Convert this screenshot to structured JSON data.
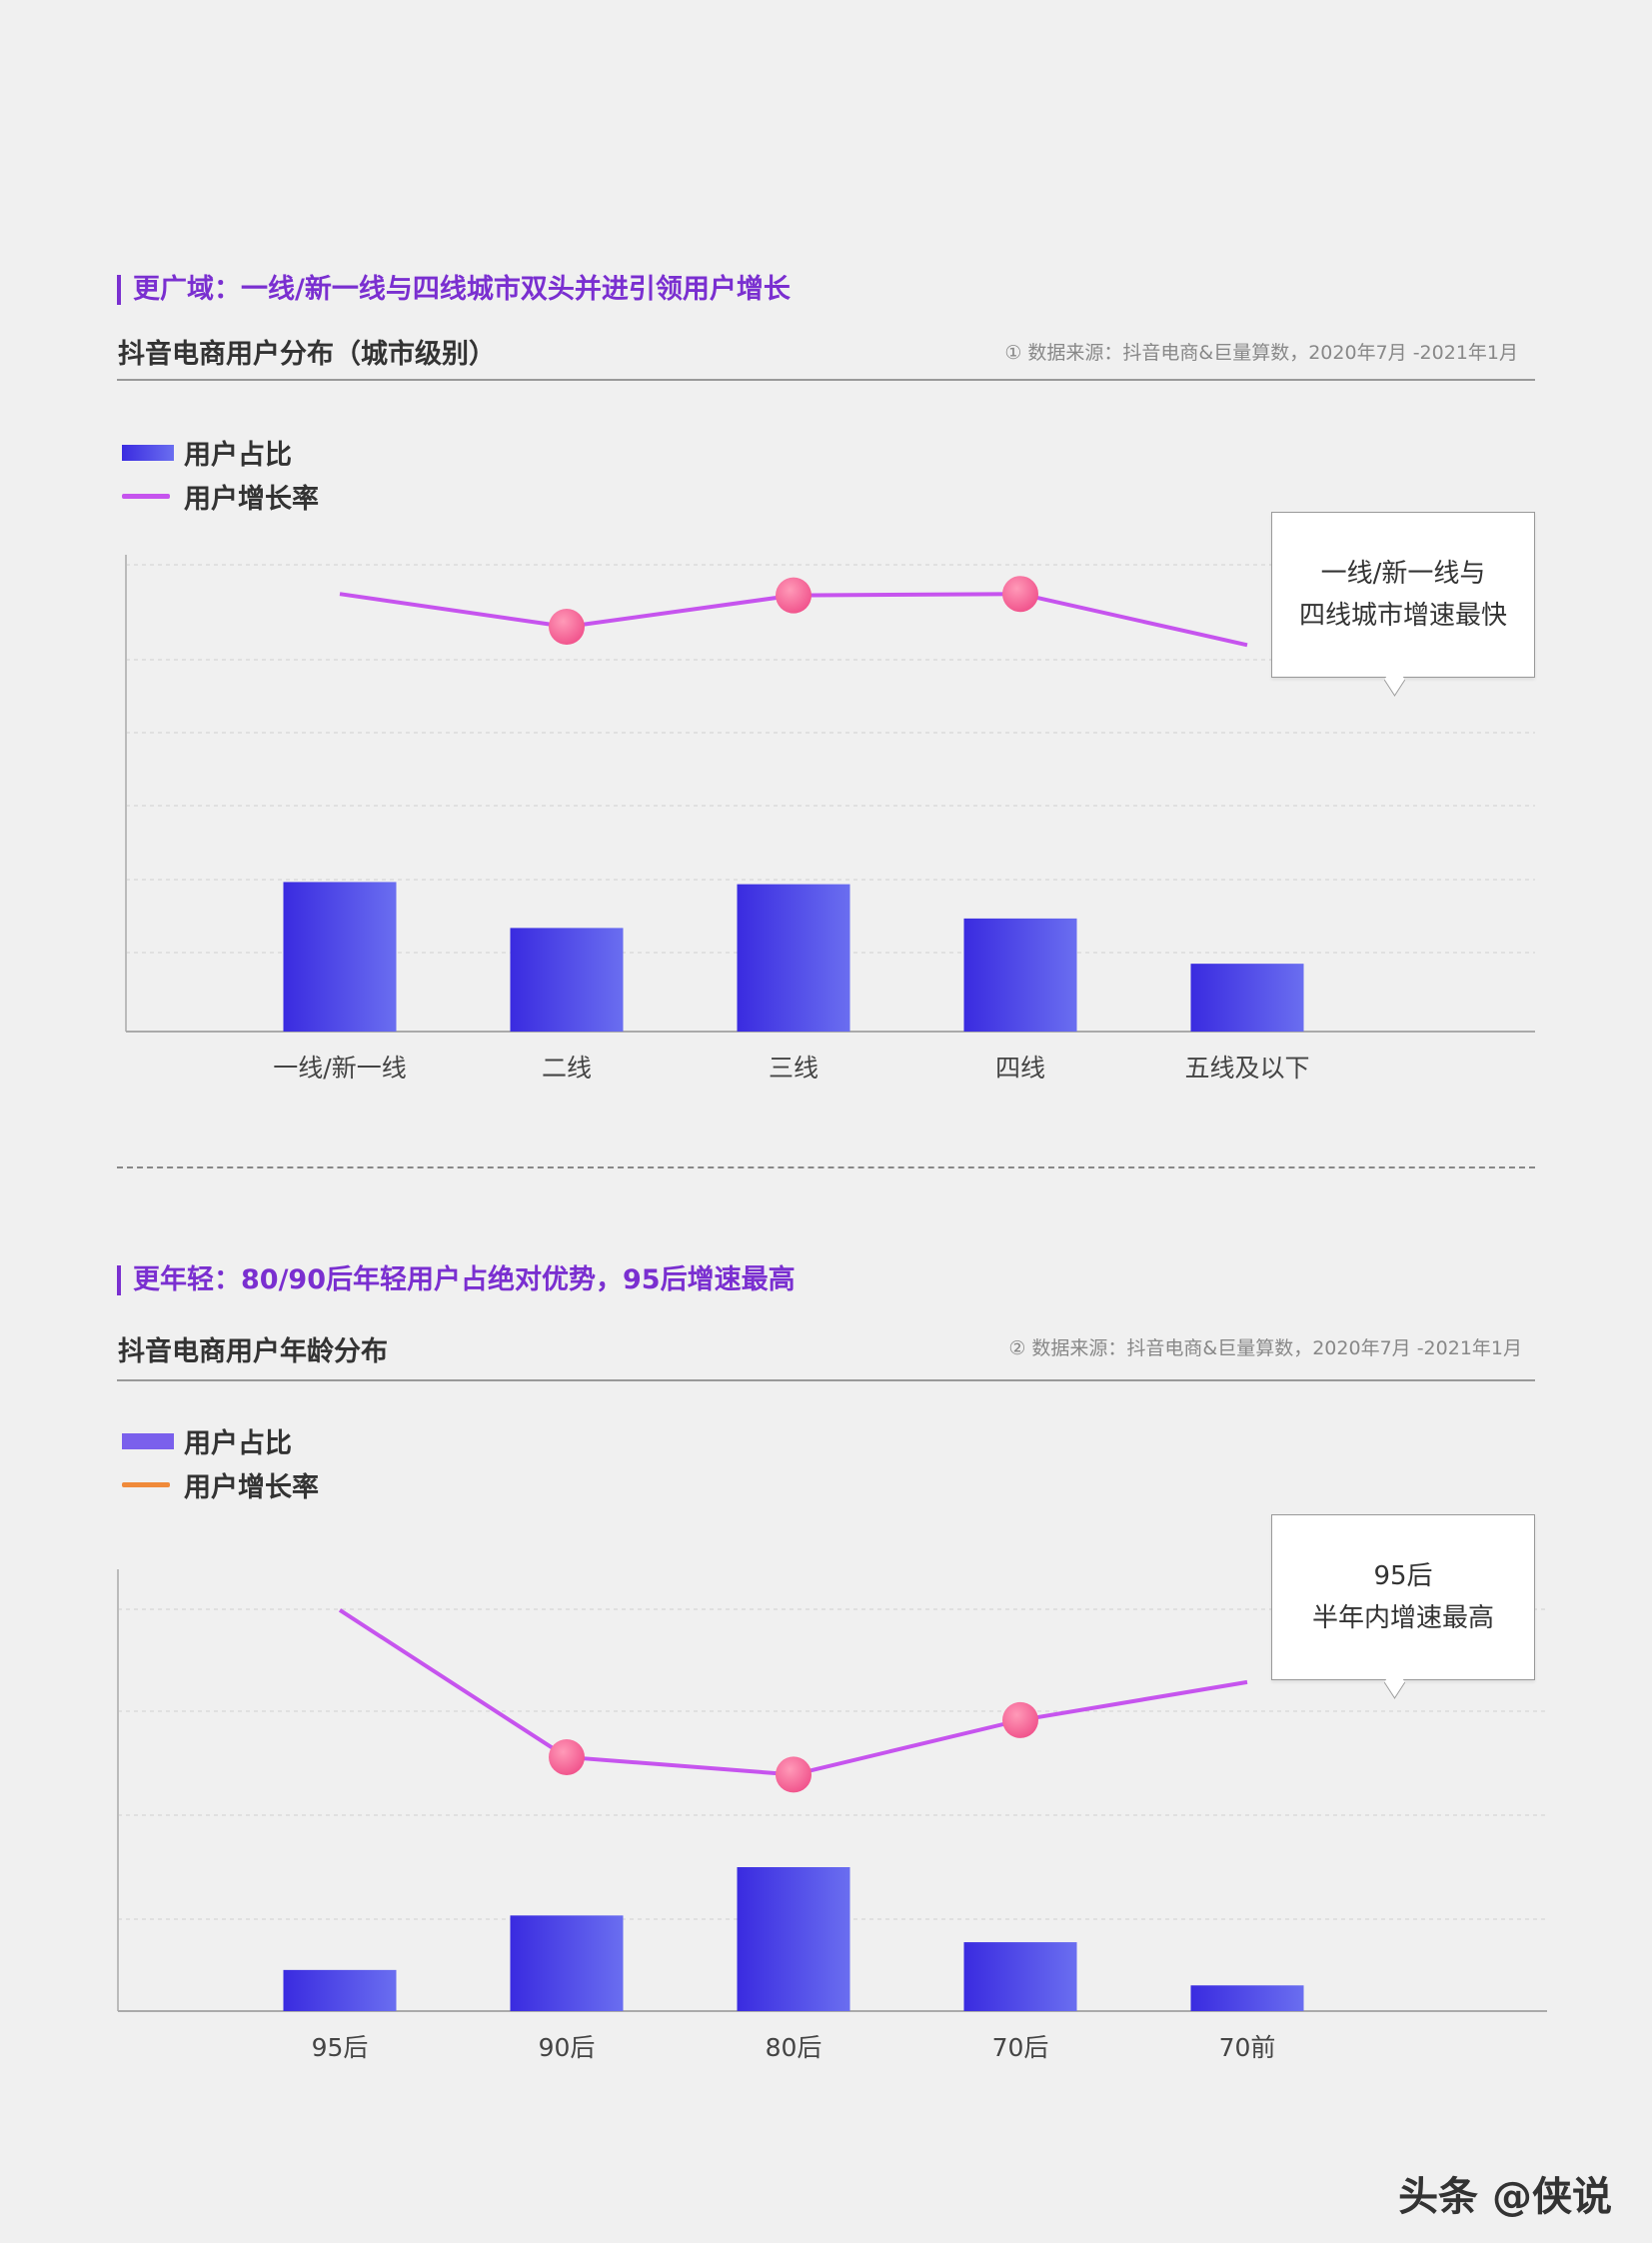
{
  "section1": {
    "headline": "更广域：一线/新一线与四线城市双头并进引领用户增长",
    "subtitle": "抖音电商用户分布（城市级别）",
    "source": "① 数据来源：抖音电商&巨量算数，2020年7月 -2021年1月",
    "legend_bar": "用户占比",
    "legend_line": "用户增长率",
    "callout_line1": "一线/新一线与",
    "callout_line2": "四线城市增速最快"
  },
  "section2": {
    "headline": "更年轻：80/90后年轻用户占绝对优势，95后增速最高",
    "subtitle": "抖音电商用户年龄分布",
    "source": "② 数据来源：抖音电商&巨量算数，2020年7月 -2021年1月",
    "legend_bar": "用户占比",
    "legend_line": "用户增长率",
    "callout_line1": "95后",
    "callout_line2": "半年内增速最高"
  },
  "colors": {
    "bar_start": "#3a2be0",
    "bar_end": "#6a6ef0",
    "line": "#c654ee",
    "marker": "#f0508a",
    "legend2_line": "#f08a3a",
    "legend2_bar": "#7a60ec"
  },
  "watermark": "头条 @侠说",
  "chart_data": [
    {
      "type": "bar",
      "categories": [
        "一线/新一线",
        "二线",
        "三线",
        "四线",
        "五线及以下"
      ],
      "series": [
        {
          "name": "用户占比",
          "type": "bar",
          "values": [
            2.05,
            1.42,
            2.02,
            1.55,
            0.93
          ]
        },
        {
          "name": "用户增长率",
          "type": "line",
          "values": [
            6.0,
            5.55,
            5.98,
            6.0,
            5.3
          ]
        }
      ],
      "markers_on": [
        1,
        2,
        3
      ],
      "ylim": [
        0,
        6.4
      ],
      "grid": true
    },
    {
      "type": "bar",
      "categories": [
        "95后",
        "90后",
        "80后",
        "70后",
        "70前"
      ],
      "series": [
        {
          "name": "用户占比",
          "type": "bar",
          "values": [
            0.4,
            0.93,
            1.4,
            0.67,
            0.25
          ]
        },
        {
          "name": "用户增长率",
          "type": "line",
          "values": [
            3.9,
            2.47,
            2.3,
            2.83,
            3.2
          ]
        }
      ],
      "markers_on": [
        1,
        2,
        3
      ],
      "ylim": [
        0,
        4.2
      ],
      "grid": true
    }
  ]
}
